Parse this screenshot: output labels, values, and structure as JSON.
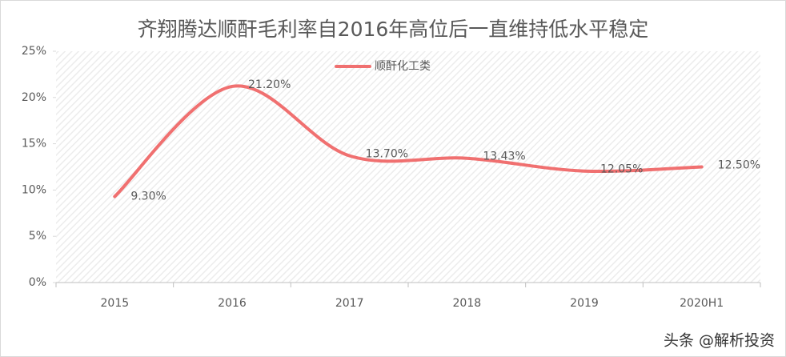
{
  "chart_data": {
    "type": "line",
    "title": "齐翔腾达顺酐毛利率自2016年高位后一直维持低水平稳定",
    "categories": [
      "2015",
      "2016",
      "2017",
      "2018",
      "2019",
      "2020H1"
    ],
    "series": [
      {
        "name": "顺酐化工类",
        "color": "#f07070",
        "values": [
          9.3,
          21.2,
          13.7,
          13.43,
          12.05,
          12.5
        ],
        "value_labels": [
          "9.30%",
          "21.20%",
          "13.70%",
          "13.43%",
          "12.05%",
          "12.50%"
        ]
      }
    ],
    "ylim": [
      0,
      25
    ],
    "yticks": [
      {
        "value": 0,
        "label": "0%"
      },
      {
        "value": 5,
        "label": "5%"
      },
      {
        "value": 10,
        "label": "10%"
      },
      {
        "value": 15,
        "label": "15%"
      },
      {
        "value": 20,
        "label": "20%"
      },
      {
        "value": 25,
        "label": "25%"
      }
    ],
    "legend": "top",
    "smooth": true,
    "watermark": "头条 @解析投资"
  }
}
